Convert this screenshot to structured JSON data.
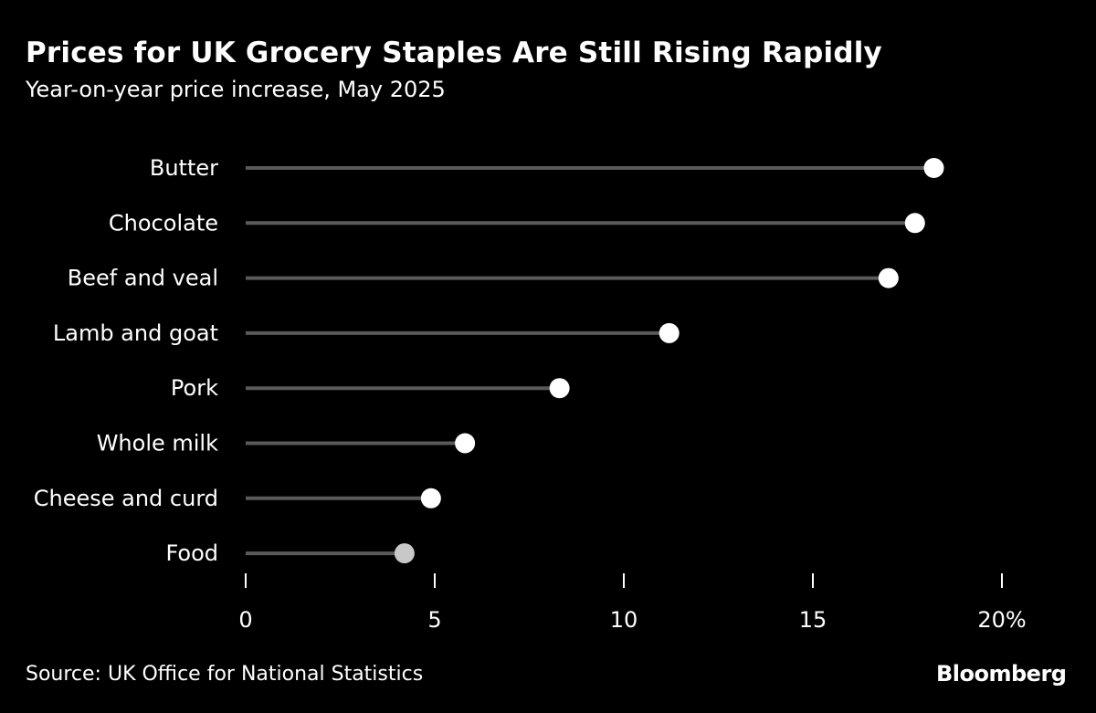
{
  "title": "Prices for UK Grocery Staples Are Still Rising Rapidly",
  "subtitle": "Year-on-year price increase, May 2025",
  "source": "Source: UK Office for National Statistics",
  "logo": "Bloomberg",
  "colors": {
    "background": "#000000",
    "stem": "#5a5a5a",
    "dot": "#ffffff",
    "highlight_dot": "#c8c8c8"
  },
  "chart_data": {
    "type": "lollipop",
    "title": "Prices for UK Grocery Staples Are Still Rising Rapidly",
    "subtitle": "Year-on-year price increase, May 2025",
    "categories": [
      "Butter",
      "Chocolate",
      "Beef and veal",
      "Lamb and goat",
      "Pork",
      "Whole milk",
      "Cheese and curd",
      "Food"
    ],
    "values": [
      18.2,
      17.7,
      17.0,
      11.2,
      8.3,
      5.8,
      4.9,
      4.2
    ],
    "highlighted": [
      "Food"
    ],
    "xlim": [
      0,
      20
    ],
    "xticks": [
      0,
      5,
      10,
      15,
      20
    ],
    "xtick_labels": [
      "0",
      "5",
      "10",
      "15",
      "20%"
    ],
    "grid": false
  }
}
